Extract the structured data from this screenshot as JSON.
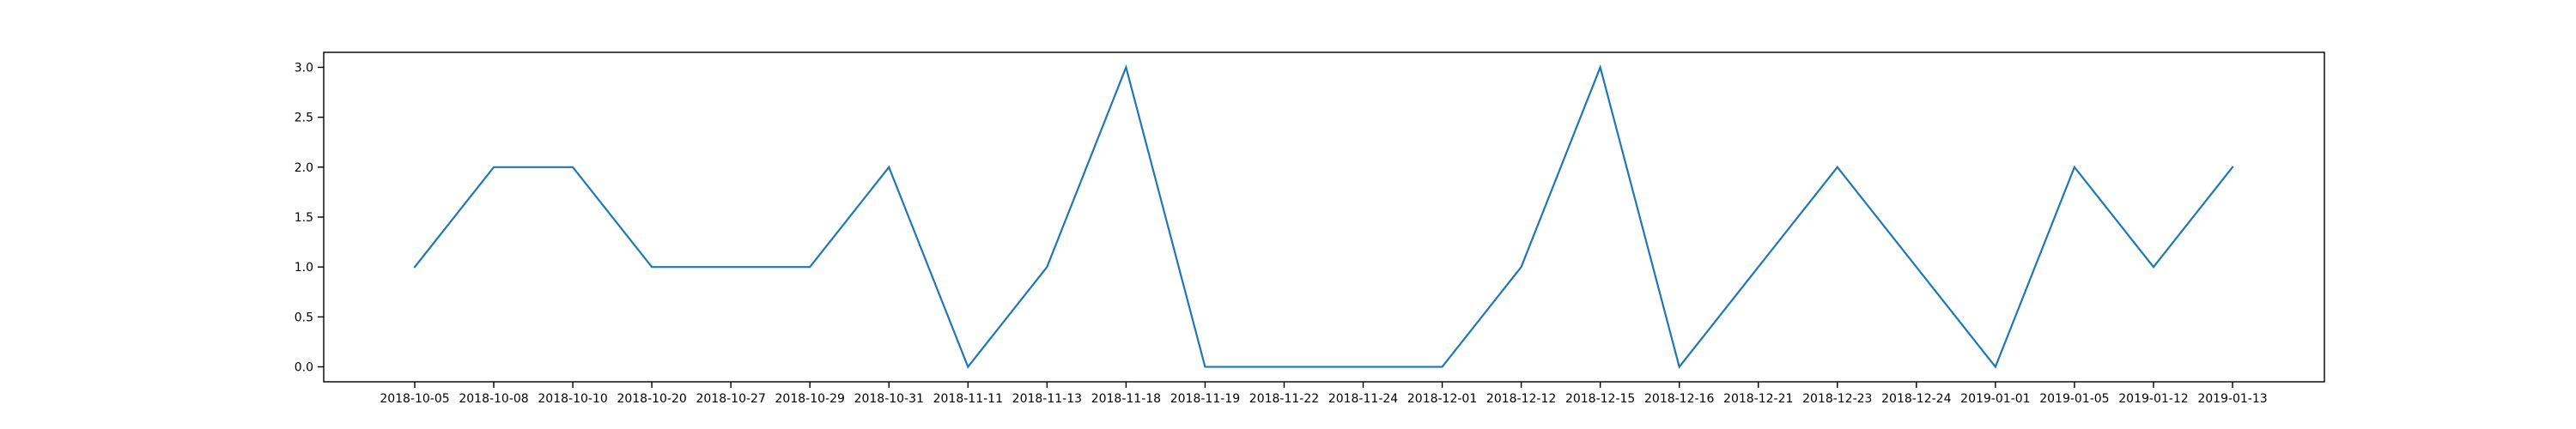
{
  "chart_data": {
    "type": "line",
    "title": "",
    "xlabel": "",
    "ylabel": "",
    "grid": false,
    "ylim": [
      -0.15,
      3.15
    ],
    "y_ticks": [
      0.0,
      0.5,
      1.0,
      1.5,
      2.0,
      2.5,
      3.0
    ],
    "y_tick_labels": [
      "0.0",
      "0.5",
      "1.0",
      "1.5",
      "2.0",
      "2.5",
      "3.0"
    ],
    "categories": [
      "2018-10-05",
      "2018-10-08",
      "2018-10-10",
      "2018-10-20",
      "2018-10-27",
      "2018-10-29",
      "2018-10-31",
      "2018-11-11",
      "2018-11-13",
      "2018-11-18",
      "2018-11-19",
      "2018-11-22",
      "2018-11-24",
      "2018-12-01",
      "2018-12-12",
      "2018-12-15",
      "2018-12-16",
      "2018-12-21",
      "2018-12-23",
      "2018-12-24",
      "2019-01-01",
      "2019-01-05",
      "2019-01-12",
      "2019-01-13"
    ],
    "series": [
      {
        "color": "#1f77b4",
        "values": [
          1,
          2,
          2,
          1,
          1,
          1,
          2,
          0,
          1,
          3,
          0,
          0,
          0,
          0,
          1,
          3,
          0,
          1,
          2,
          1,
          0,
          2,
          1,
          2
        ]
      }
    ]
  }
}
